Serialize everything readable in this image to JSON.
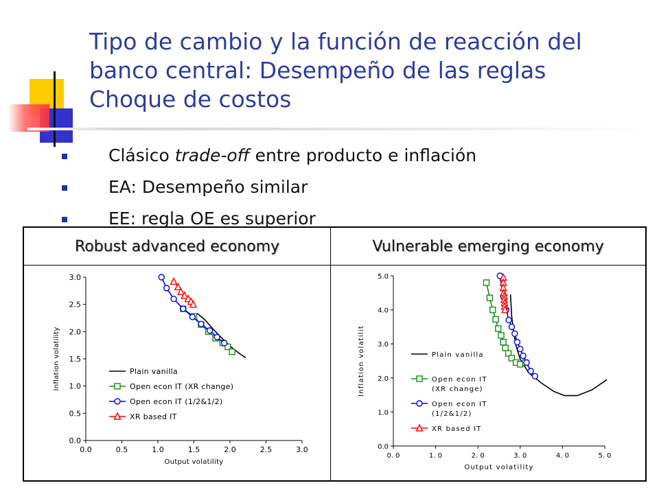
{
  "slide": {
    "title_lines": [
      "Tipo de cambio y la función de reacción del",
      "banco central: Desempeño de las reglas",
      "Choque de costos"
    ],
    "bullets": [
      {
        "pre": "Clásico ",
        "em": "trade-off",
        "post": " entre producto e inflación"
      },
      {
        "pre": "EA: Desempeño similar",
        "em": "",
        "post": ""
      },
      {
        "pre": "EE: regla OE es superior",
        "em": "",
        "post": ""
      }
    ],
    "colors": {
      "title": "#2e3d9c",
      "bullet": "#2232a8",
      "deco_yellow": "#ffcc00",
      "deco_blue": "#3333cc",
      "deco_red": "#ff3333"
    }
  },
  "panels": {
    "left_header": "Robust advanced economy",
    "right_header": "Vulnerable emerging economy"
  },
  "chart_data": [
    {
      "type": "line",
      "xlabel": "Output volatility",
      "ylabel": "Inflation volatility",
      "xlim": [
        0.0,
        3.0
      ],
      "ylim": [
        0.0,
        3.0
      ],
      "xticks": [
        "0.0",
        "0.5",
        "1.0",
        "1.5",
        "2.0",
        "2.5",
        "3.0"
      ],
      "yticks": [
        "0.0",
        "0.5",
        "1.0",
        "1.5",
        "2.0",
        "2.5",
        "3.0"
      ],
      "legend_position": "bottom-left",
      "series": [
        {
          "name": "Plain vanilla",
          "color": "#000000",
          "marker": "none",
          "x": [
            1.45,
            1.55,
            1.65,
            1.75,
            1.85,
            1.95,
            2.05,
            2.15,
            2.22
          ],
          "y": [
            2.28,
            2.33,
            2.22,
            2.07,
            1.93,
            1.8,
            1.68,
            1.58,
            1.52
          ]
        },
        {
          "name": "Open econ IT (XR change)",
          "color": "#1a8a1a",
          "marker": "square",
          "x": [
            1.35,
            1.5,
            1.6,
            1.7,
            1.8,
            1.9,
            1.97,
            2.03
          ],
          "y": [
            2.42,
            2.28,
            2.13,
            2.0,
            1.88,
            1.79,
            1.72,
            1.63
          ]
        },
        {
          "name": "Open econ IT (1/2&1/2)",
          "color": "#0000ff",
          "marker": "circle",
          "x": [
            1.05,
            1.12,
            1.22,
            1.35,
            1.48,
            1.6,
            1.72,
            1.82,
            1.92
          ],
          "y": [
            3.0,
            2.8,
            2.6,
            2.42,
            2.27,
            2.14,
            2.02,
            1.9,
            1.79
          ]
        },
        {
          "name": "XR based IT",
          "color": "#ff0000",
          "marker": "triangle",
          "x": [
            1.22,
            1.28,
            1.32,
            1.37,
            1.42,
            1.46,
            1.49
          ],
          "y": [
            2.92,
            2.82,
            2.73,
            2.66,
            2.6,
            2.55,
            2.5
          ]
        }
      ]
    },
    {
      "type": "line",
      "xlabel": "Output volatility",
      "ylabel": "Inflation volatilit",
      "xlim": [
        0.0,
        5.0
      ],
      "ylim": [
        0.0,
        5.0
      ],
      "xticks": [
        "0. 0",
        "1. 0",
        "2. 0",
        "3. 0",
        "4. 0",
        "5. 0"
      ],
      "yticks": [
        "0.0",
        "1.0",
        "2.0",
        "3.0",
        "4.0",
        "5.0"
      ],
      "legend_position": "left",
      "series": [
        {
          "name": "Plain vanilla",
          "color": "#000000",
          "marker": "none",
          "x": [
            2.77,
            2.8,
            2.85,
            2.9,
            3.0,
            3.2,
            3.5,
            3.8,
            4.05,
            4.35,
            4.7,
            5.05
          ],
          "y": [
            4.45,
            3.8,
            3.3,
            2.95,
            2.55,
            2.15,
            1.85,
            1.6,
            1.48,
            1.48,
            1.65,
            1.95
          ]
        },
        {
          "name": "Open econ IT\n(XR change)",
          "color": "#1a8a1a",
          "marker": "square",
          "x": [
            2.2,
            2.28,
            2.35,
            2.42,
            2.48,
            2.55,
            2.6,
            2.65,
            2.72,
            2.8,
            2.9,
            3.0,
            3.12
          ],
          "y": [
            4.8,
            4.35,
            4.0,
            3.72,
            3.45,
            3.25,
            3.05,
            2.88,
            2.72,
            2.58,
            2.45,
            2.4,
            2.45
          ]
        },
        {
          "name": "Open econ IT\n(1/2&1/2)",
          "color": "#0000ff",
          "marker": "circle",
          "x": [
            2.52,
            2.6,
            2.67,
            2.73,
            2.8,
            2.87,
            2.93,
            3.0,
            3.07,
            3.15,
            3.25,
            3.35
          ],
          "y": [
            5.0,
            4.4,
            4.0,
            3.7,
            3.5,
            3.3,
            3.05,
            2.85,
            2.65,
            2.45,
            2.2,
            2.05
          ]
        },
        {
          "name": "XR based IT",
          "color": "#ff0000",
          "marker": "triangle",
          "x": [
            2.6,
            2.6,
            2.6,
            2.61,
            2.62,
            2.62,
            2.63,
            2.63,
            2.64
          ],
          "y": [
            4.95,
            4.8,
            4.65,
            4.5,
            4.4,
            4.3,
            4.2,
            4.1,
            4.0
          ]
        }
      ]
    }
  ]
}
